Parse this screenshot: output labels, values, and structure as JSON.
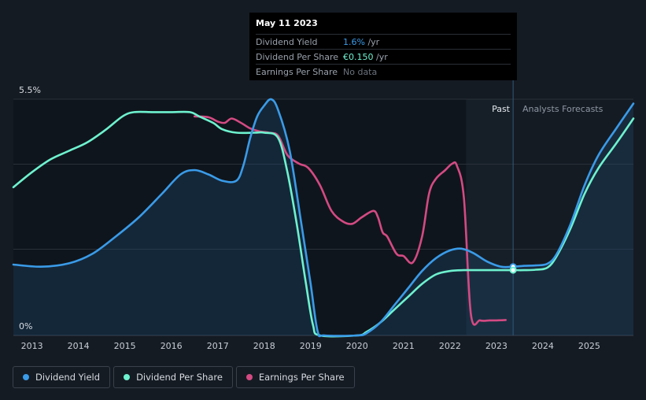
{
  "tooltip": {
    "date": "May 11 2023",
    "rows": [
      {
        "label": "Dividend Yield",
        "value": "1.6%",
        "unit": " /yr",
        "color": "#3a9be8"
      },
      {
        "label": "Dividend Per Share",
        "value": "€0.150",
        "unit": " /yr",
        "color": "#6ef2cf"
      },
      {
        "label": "Earnings Per Share",
        "value": "No data",
        "unit": "",
        "color": "#7d8590"
      }
    ]
  },
  "legend": [
    {
      "label": "Dividend Yield",
      "color": "#3a9be8"
    },
    {
      "label": "Dividend Per Share",
      "color": "#6ef2cf"
    },
    {
      "label": "Earnings Per Share",
      "color": "#d44a83"
    }
  ],
  "colors": {
    "background": "#151b23",
    "past_shade": "#0f151c",
    "forecast_shade": "#1a2530"
  },
  "chart_data": {
    "type": "line",
    "x_ticks": [
      "2013",
      "2014",
      "2015",
      "2016",
      "2017",
      "2018",
      "2019",
      "2020",
      "2021",
      "2022",
      "2023",
      "2024",
      "2025"
    ],
    "y_ticks": [
      "0%",
      "5.5%"
    ],
    "ylim": [
      0,
      5.5
    ],
    "xlim": [
      2012.6,
      2025.95
    ],
    "past_label": "Past",
    "forecast_label": "Analysts Forecasts",
    "past_region_start": 2022.35,
    "cursor_x": 2023.36,
    "series": [
      {
        "name": "Dividend Yield",
        "color": "#3a9be8",
        "points": [
          [
            2012.6,
            1.65
          ],
          [
            2013.2,
            1.6
          ],
          [
            2013.8,
            1.68
          ],
          [
            2014.3,
            1.9
          ],
          [
            2014.8,
            2.3
          ],
          [
            2015.3,
            2.75
          ],
          [
            2015.8,
            3.3
          ],
          [
            2016.2,
            3.75
          ],
          [
            2016.5,
            3.85
          ],
          [
            2016.8,
            3.75
          ],
          [
            2017.1,
            3.6
          ],
          [
            2017.4,
            3.6
          ],
          [
            2017.55,
            3.95
          ],
          [
            2017.7,
            4.6
          ],
          [
            2017.85,
            5.1
          ],
          [
            2018.0,
            5.35
          ],
          [
            2018.15,
            5.5
          ],
          [
            2018.3,
            5.25
          ],
          [
            2018.55,
            4.3
          ],
          [
            2018.8,
            2.6
          ],
          [
            2019.0,
            1.2
          ],
          [
            2019.15,
            0.1
          ],
          [
            2019.3,
            0.0
          ],
          [
            2020.0,
            0.0
          ],
          [
            2020.2,
            0.05
          ],
          [
            2020.5,
            0.3
          ],
          [
            2020.8,
            0.7
          ],
          [
            2021.1,
            1.1
          ],
          [
            2021.4,
            1.5
          ],
          [
            2021.7,
            1.8
          ],
          [
            2022.0,
            1.98
          ],
          [
            2022.25,
            2.02
          ],
          [
            2022.5,
            1.92
          ],
          [
            2022.8,
            1.72
          ],
          [
            2023.1,
            1.6
          ],
          [
            2023.36,
            1.6
          ],
          [
            2023.6,
            1.62
          ],
          [
            2023.85,
            1.63
          ],
          [
            2024.1,
            1.67
          ],
          [
            2024.3,
            1.9
          ],
          [
            2024.6,
            2.6
          ],
          [
            2024.9,
            3.5
          ],
          [
            2025.2,
            4.2
          ],
          [
            2025.6,
            4.85
          ],
          [
            2025.95,
            5.4
          ]
        ]
      },
      {
        "name": "Dividend Per Share",
        "color": "#6ef2cf",
        "points": [
          [
            2012.6,
            3.45
          ],
          [
            2013.0,
            3.8
          ],
          [
            2013.4,
            4.1
          ],
          [
            2013.8,
            4.3
          ],
          [
            2014.2,
            4.5
          ],
          [
            2014.6,
            4.8
          ],
          [
            2014.95,
            5.1
          ],
          [
            2015.2,
            5.2
          ],
          [
            2015.6,
            5.2
          ],
          [
            2016.0,
            5.2
          ],
          [
            2016.4,
            5.2
          ],
          [
            2016.6,
            5.1
          ],
          [
            2016.9,
            4.95
          ],
          [
            2017.1,
            4.8
          ],
          [
            2017.4,
            4.72
          ],
          [
            2017.8,
            4.72
          ],
          [
            2018.0,
            4.72
          ],
          [
            2018.3,
            4.6
          ],
          [
            2018.5,
            3.8
          ],
          [
            2018.7,
            2.6
          ],
          [
            2018.9,
            1.2
          ],
          [
            2019.05,
            0.25
          ],
          [
            2019.2,
            0.0
          ],
          [
            2020.0,
            0.0
          ],
          [
            2020.2,
            0.08
          ],
          [
            2020.5,
            0.3
          ],
          [
            2020.8,
            0.6
          ],
          [
            2021.1,
            0.9
          ],
          [
            2021.4,
            1.2
          ],
          [
            2021.7,
            1.42
          ],
          [
            2022.0,
            1.5
          ],
          [
            2022.3,
            1.52
          ],
          [
            2022.6,
            1.52
          ],
          [
            2023.0,
            1.52
          ],
          [
            2023.36,
            1.52
          ],
          [
            2023.6,
            1.52
          ],
          [
            2023.85,
            1.53
          ],
          [
            2024.1,
            1.58
          ],
          [
            2024.3,
            1.85
          ],
          [
            2024.6,
            2.5
          ],
          [
            2024.9,
            3.3
          ],
          [
            2025.2,
            3.9
          ],
          [
            2025.6,
            4.5
          ],
          [
            2025.95,
            5.05
          ]
        ]
      },
      {
        "name": "Earnings Per Share",
        "color": "#d44a83",
        "points": [
          [
            2016.5,
            5.1
          ],
          [
            2016.8,
            5.08
          ],
          [
            2017.0,
            4.98
          ],
          [
            2017.15,
            4.95
          ],
          [
            2017.3,
            5.05
          ],
          [
            2017.5,
            4.95
          ],
          [
            2017.7,
            4.82
          ],
          [
            2017.9,
            4.75
          ],
          [
            2018.1,
            4.72
          ],
          [
            2018.3,
            4.65
          ],
          [
            2018.5,
            4.2
          ],
          [
            2018.75,
            4.0
          ],
          [
            2018.95,
            3.9
          ],
          [
            2019.2,
            3.5
          ],
          [
            2019.45,
            2.9
          ],
          [
            2019.7,
            2.65
          ],
          [
            2019.9,
            2.6
          ],
          [
            2020.1,
            2.75
          ],
          [
            2020.35,
            2.9
          ],
          [
            2020.45,
            2.75
          ],
          [
            2020.55,
            2.4
          ],
          [
            2020.65,
            2.3
          ],
          [
            2020.85,
            1.9
          ],
          [
            2021.0,
            1.85
          ],
          [
            2021.2,
            1.7
          ],
          [
            2021.4,
            2.3
          ],
          [
            2021.55,
            3.3
          ],
          [
            2021.7,
            3.65
          ],
          [
            2021.9,
            3.85
          ],
          [
            2022.05,
            4.0
          ],
          [
            2022.15,
            3.95
          ],
          [
            2022.3,
            3.2
          ],
          [
            2022.45,
            0.5
          ],
          [
            2022.65,
            0.35
          ],
          [
            2022.85,
            0.35
          ],
          [
            2023.0,
            0.35
          ],
          [
            2023.2,
            0.36
          ]
        ]
      }
    ]
  }
}
